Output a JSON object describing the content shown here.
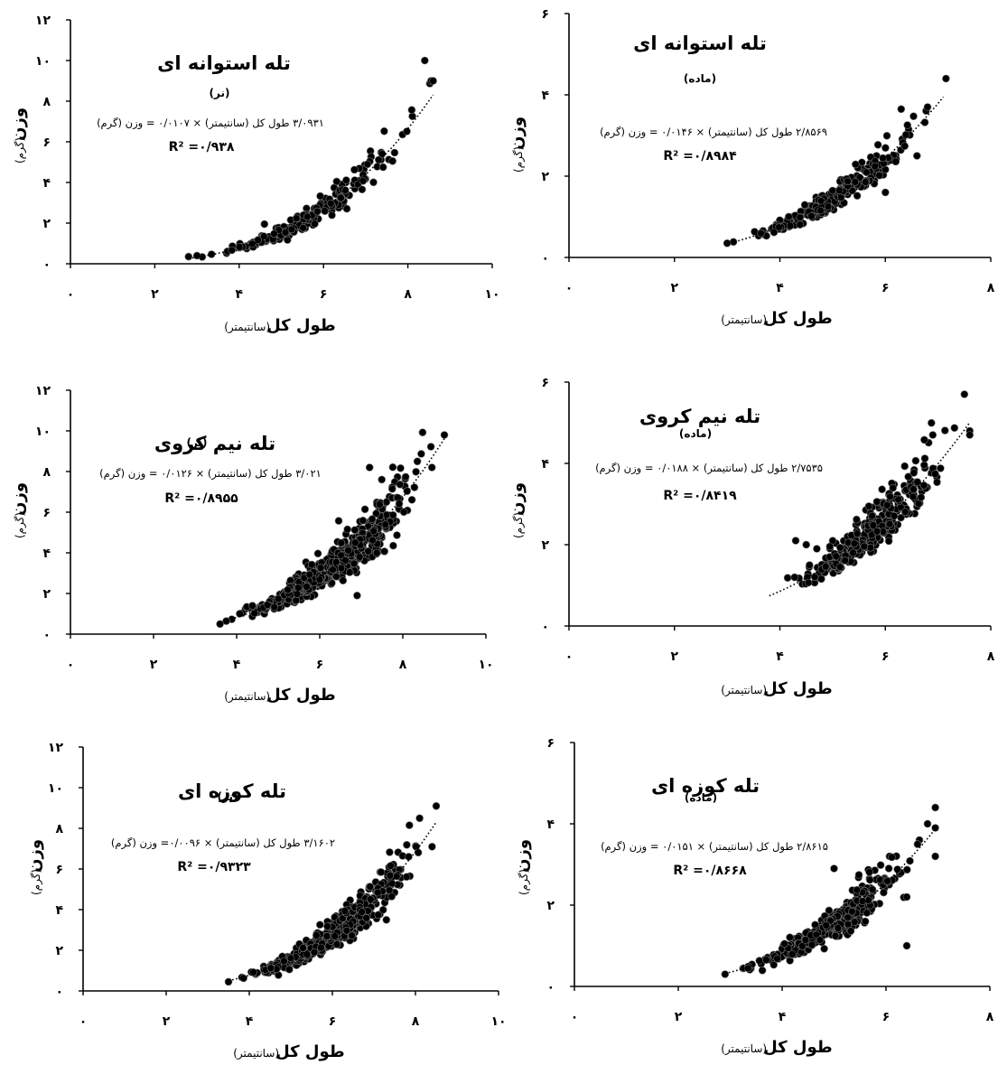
{
  "chart_data": [
    {
      "type": "scatter",
      "title": "تله استوانه ای",
      "subtitle": "(نر)",
      "equation": "۳/۰۹۳۱ طول کل (سانتیمتر) × ۰/۰۱۰۷ = وزن (گرم)",
      "r_squared_text": "R² =۰/۹۳۸",
      "xlabel": "طول کل",
      "xlabel_unit": "(سانتیمتر)",
      "ylabel": "وزن",
      "ylabel_unit": "(گرم)",
      "xlim": [
        0,
        10
      ],
      "ylim": [
        0,
        12
      ],
      "xticks": [
        {
          "v": 0,
          "label": "۰"
        },
        {
          "v": 2,
          "label": "۲"
        },
        {
          "v": 4,
          "label": "۴"
        },
        {
          "v": 6,
          "label": "۶"
        },
        {
          "v": 8,
          "label": "۸"
        },
        {
          "v": 10,
          "label": "۱۰"
        }
      ],
      "yticks": [
        {
          "v": 0,
          "label": "۰"
        },
        {
          "v": 2,
          "label": "۲"
        },
        {
          "v": 4,
          "label": "۴"
        },
        {
          "v": 6,
          "label": "۶"
        },
        {
          "v": 8,
          "label": "۸"
        },
        {
          "v": 10,
          "label": "۱۰"
        },
        {
          "v": 12,
          "label": "۱۲"
        }
      ],
      "fit": {
        "a": 0.0107,
        "b": 3.0931,
        "x_range": [
          2.8,
          8.6
        ]
      },
      "x_range": [
        2.8,
        8.6
      ],
      "n_points": 230,
      "spread": 0.11,
      "extra_points": [
        [
          2.8,
          0.35
        ],
        [
          3.0,
          0.4
        ],
        [
          8.4,
          10.0
        ],
        [
          8.55,
          9.0
        ],
        [
          8.6,
          9.0
        ],
        [
          4.6,
          1.95
        ]
      ]
    },
    {
      "type": "scatter",
      "title": "تله استوانه ای",
      "subtitle": "(ماده)",
      "equation": "۲/۸۵۶۹ طول کل (سانتیمتر) × ۰/۰۱۴۶ = وزن (گرم)",
      "r_squared_text": "R² =۰/۸۹۸۴",
      "xlabel": "طول کل",
      "xlabel_unit": "(سانتیمتر)",
      "ylabel": "وزن",
      "ylabel_unit": "(گرم)",
      "xlim": [
        0,
        8
      ],
      "ylim": [
        0,
        6
      ],
      "xticks": [
        {
          "v": 0,
          "label": "۰"
        },
        {
          "v": 2,
          "label": "۲"
        },
        {
          "v": 4,
          "label": "۴"
        },
        {
          "v": 6,
          "label": "۶"
        },
        {
          "v": 8,
          "label": "۸"
        }
      ],
      "yticks": [
        {
          "v": 0,
          "label": "۰"
        },
        {
          "v": 2,
          "label": "۲"
        },
        {
          "v": 4,
          "label": "۴"
        },
        {
          "v": 6,
          "label": "۶"
        }
      ],
      "fit": {
        "a": 0.0146,
        "b": 2.8569,
        "x_range": [
          3.0,
          7.1
        ]
      },
      "x_range": [
        3.0,
        7.1
      ],
      "n_points": 260,
      "spread": 0.1,
      "extra_points": [
        [
          3.0,
          0.35
        ],
        [
          7.15,
          4.4
        ],
        [
          6.3,
          3.65
        ],
        [
          6.8,
          3.7
        ],
        [
          6.6,
          2.5
        ],
        [
          6.0,
          1.6
        ]
      ]
    },
    {
      "type": "scatter",
      "title": "تله نیم کروی",
      "subtitle": "(نر)",
      "equation": "۳/۰۲۱ طول کل (سانتیمتر) × ۰/۰۱۲۶ = وزن (گرم)",
      "r_squared_text": "R² =۰/۸۹۵۵",
      "xlabel": "طول کل",
      "xlabel_unit": "(سانتیمتر)",
      "ylabel": "وزن",
      "ylabel_unit": "(گرم)",
      "xlim": [
        0,
        10
      ],
      "ylim": [
        0,
        12
      ],
      "xticks": [
        {
          "v": 0,
          "label": "۰"
        },
        {
          "v": 2,
          "label": "۲"
        },
        {
          "v": 4,
          "label": "۴"
        },
        {
          "v": 6,
          "label": "۶"
        },
        {
          "v": 8,
          "label": "۸"
        },
        {
          "v": 10,
          "label": "۱۰"
        }
      ],
      "yticks": [
        {
          "v": 0,
          "label": "۰"
        },
        {
          "v": 2,
          "label": "۲"
        },
        {
          "v": 4,
          "label": "۴"
        },
        {
          "v": 6,
          "label": "۶"
        },
        {
          "v": 8,
          "label": "۸"
        },
        {
          "v": 10,
          "label": "۱۰"
        },
        {
          "v": 12,
          "label": "۱۲"
        }
      ],
      "fit": {
        "a": 0.0126,
        "b": 3.021,
        "x_range": [
          3.6,
          9.0
        ]
      },
      "x_range": [
        3.6,
        9.0
      ],
      "n_points": 600,
      "spread": 0.13,
      "extra_points": [
        [
          3.6,
          0.5
        ],
        [
          9.0,
          9.8
        ],
        [
          8.7,
          8.2
        ],
        [
          7.2,
          8.2
        ],
        [
          6.9,
          1.9
        ]
      ]
    },
    {
      "type": "scatter",
      "title": "تله نیم کروی",
      "subtitle": "(ماده)",
      "equation": "۲/۷۵۳۵ طول کل (سانتیمتر) × ۰/۰۱۸۸ = وزن (گرم)",
      "r_squared_text": "R² =۰/۸۴۱۹",
      "xlabel": "طول کل",
      "xlabel_unit": "(سانتیمتر)",
      "ylabel": "وزن",
      "ylabel_unit": "(گرم)",
      "xlim": [
        0,
        8
      ],
      "ylim": [
        0,
        6
      ],
      "xticks": [
        {
          "v": 0,
          "label": "۰"
        },
        {
          "v": 2,
          "label": "۲"
        },
        {
          "v": 4,
          "label": "۴"
        },
        {
          "v": 6,
          "label": "۶"
        },
        {
          "v": 8,
          "label": "۸"
        }
      ],
      "yticks": [
        {
          "v": 0,
          "label": "۰"
        },
        {
          "v": 2,
          "label": "۲"
        },
        {
          "v": 4,
          "label": "۴"
        },
        {
          "v": 6,
          "label": "۶"
        }
      ],
      "fit": {
        "a": 0.0188,
        "b": 2.7535,
        "x_range": [
          3.8,
          7.6
        ]
      },
      "x_range": [
        3.8,
        7.6
      ],
      "n_points": 300,
      "spread": 0.13,
      "extra_points": [
        [
          7.5,
          5.7
        ],
        [
          7.6,
          4.8
        ],
        [
          7.6,
          4.7
        ],
        [
          6.9,
          4.7
        ],
        [
          4.5,
          2.0
        ],
        [
          4.7,
          1.9
        ],
        [
          4.3,
          2.1
        ]
      ]
    },
    {
      "type": "scatter",
      "title": "تله کوزه ای",
      "subtitle": "(نر)",
      "equation": "۳/۱۶۰۲ طول کل (سانتیمتر) × ۰/۰۰۹۶= وزن (گرم)",
      "r_squared_text": "R² =۰/۹۳۲۳",
      "xlabel": "طول کل",
      "xlabel_unit": "(سانتیمتر)",
      "ylabel": "وزن",
      "ylabel_unit": "(گرم)",
      "xlim": [
        0,
        10
      ],
      "ylim": [
        0,
        12
      ],
      "xticks": [
        {
          "v": 0,
          "label": "۰"
        },
        {
          "v": 2,
          "label": "۲"
        },
        {
          "v": 4,
          "label": "۴"
        },
        {
          "v": 6,
          "label": "۶"
        },
        {
          "v": 8,
          "label": "۸"
        },
        {
          "v": 10,
          "label": "۱۰"
        }
      ],
      "yticks": [
        {
          "v": 0,
          "label": "۰"
        },
        {
          "v": 2,
          "label": "۲"
        },
        {
          "v": 4,
          "label": "۴"
        },
        {
          "v": 6,
          "label": "۶"
        },
        {
          "v": 8,
          "label": "۸"
        },
        {
          "v": 10,
          "label": "۱۰"
        },
        {
          "v": 12,
          "label": "۱۲"
        }
      ],
      "fit": {
        "a": 0.0096,
        "b": 3.1602,
        "x_range": [
          3.5,
          8.5
        ]
      },
      "x_range": [
        3.5,
        8.5
      ],
      "n_points": 520,
      "spread": 0.12,
      "extra_points": [
        [
          3.5,
          0.45
        ],
        [
          8.5,
          9.1
        ],
        [
          8.1,
          8.5
        ],
        [
          8.4,
          7.1
        ],
        [
          7.3,
          3.5
        ]
      ]
    },
    {
      "type": "scatter",
      "title": "تله کوزه ای",
      "subtitle": "(ماده)",
      "equation": "۲/۸۶۱۵ طول کل (سانتیمتر) × ۰/۰۱۵۱ = وزن (گرم)",
      "r_squared_text": "R² =۰/۸۶۶۸",
      "xlabel": "طول کل",
      "xlabel_unit": "(سانتیمتر)",
      "ylabel": "وزن",
      "ylabel_unit": "(گرم)",
      "xlim": [
        0,
        8
      ],
      "ylim": [
        0,
        6
      ],
      "xticks": [
        {
          "v": 0,
          "label": "۰"
        },
        {
          "v": 2,
          "label": "۲"
        },
        {
          "v": 4,
          "label": "۴"
        },
        {
          "v": 6,
          "label": "۶"
        },
        {
          "v": 8,
          "label": "۸"
        }
      ],
      "yticks": [
        {
          "v": 0,
          "label": "۰"
        },
        {
          "v": 2,
          "label": "۲"
        },
        {
          "v": 4,
          "label": "۴"
        },
        {
          "v": 6,
          "label": "۶"
        }
      ],
      "fit": {
        "a": 0.0151,
        "b": 2.8615,
        "x_range": [
          2.9,
          7.0
        ]
      },
      "x_range": [
        2.9,
        7.0
      ],
      "n_points": 380,
      "spread": 0.13,
      "extra_points": [
        [
          2.9,
          0.3
        ],
        [
          6.95,
          4.4
        ],
        [
          6.95,
          3.9
        ],
        [
          6.8,
          4.0
        ],
        [
          6.95,
          3.2
        ],
        [
          6.4,
          2.2
        ],
        [
          6.4,
          1.0
        ],
        [
          5.0,
          2.9
        ]
      ]
    }
  ]
}
